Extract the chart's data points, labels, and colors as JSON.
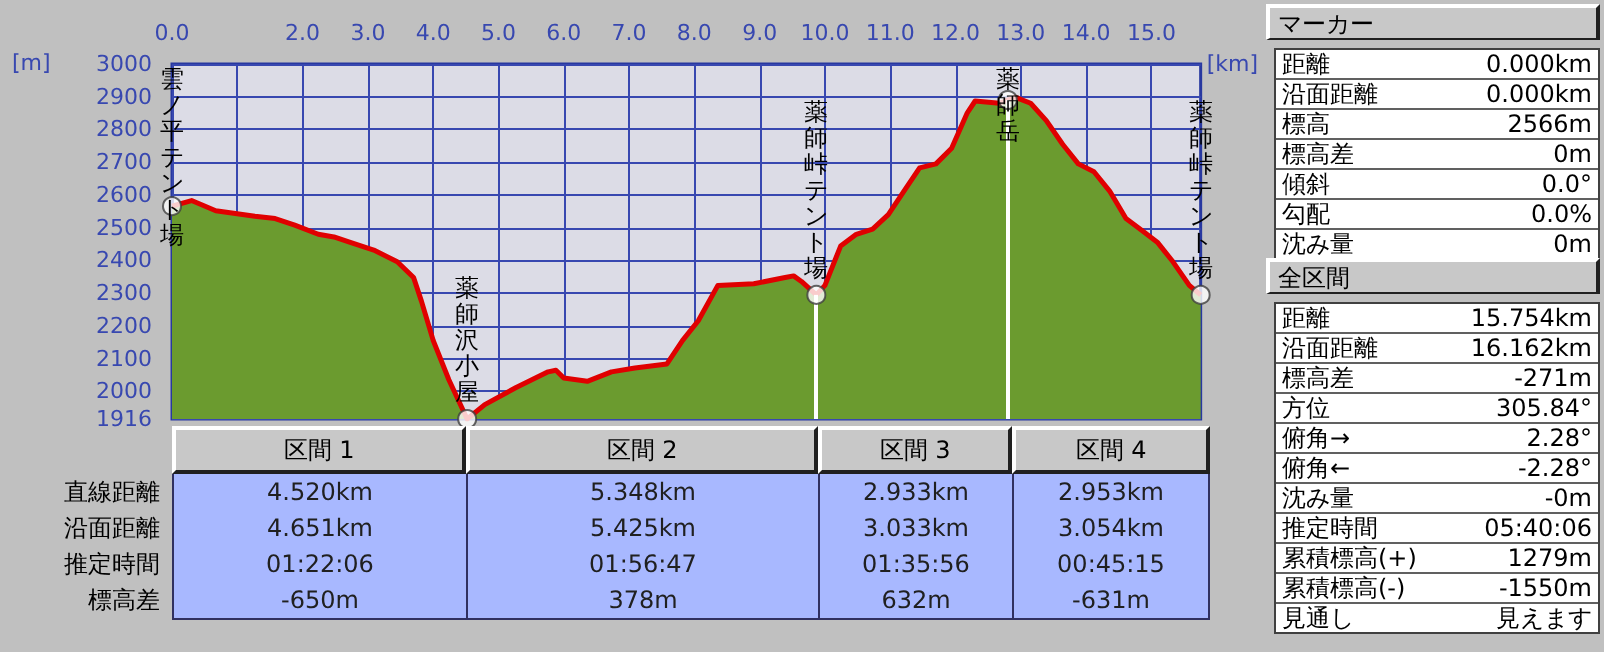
{
  "chart_data": [
    {
      "type": "area",
      "xlabel": "[km]",
      "ylabel": "[m]",
      "x": [
        0,
        0.3,
        0.67,
        1.27,
        1.58,
        1.88,
        2.24,
        2.48,
        2.73,
        3.09,
        3.45,
        3.7,
        3.82,
        4.0,
        4.24,
        4.52,
        4.79,
        5.27,
        5.76,
        5.88,
        6.0,
        6.36,
        6.73,
        7.09,
        7.58,
        7.82,
        8.06,
        8.36,
        8.91,
        9.39,
        9.52,
        9.64,
        9.868,
        10.0,
        10.24,
        10.48,
        10.73,
        10.97,
        11.21,
        11.45,
        11.7,
        11.94,
        12.18,
        12.3,
        12.67,
        12.91,
        13.15,
        13.39,
        13.64,
        13.88,
        14.12,
        14.36,
        14.61,
        14.85,
        15.09,
        15.33,
        15.58,
        15.754
      ],
      "series": [
        {
          "color": "#6b9b2f",
          "values": [
            2566,
            2583,
            2552,
            2535,
            2528,
            2508,
            2480,
            2472,
            2455,
            2432,
            2396,
            2348,
            2276,
            2156,
            2036,
            1916,
            1960,
            2012,
            2060,
            2065,
            2041,
            2031,
            2060,
            2072,
            2084,
            2156,
            2216,
            2324,
            2329,
            2348,
            2353,
            2336,
            2295,
            2324,
            2444,
            2480,
            2496,
            2540,
            2612,
            2683,
            2695,
            2743,
            2851,
            2887,
            2880,
            2899,
            2880,
            2827,
            2755,
            2695,
            2671,
            2612,
            2528,
            2492,
            2456,
            2396,
            2324,
            2295
          ]
        }
      ],
      "xlim": [
        0,
        15.754
      ],
      "xticks": [
        {
          "value": 0,
          "label": "0.0"
        },
        {
          "value": 1,
          "label": null
        },
        {
          "value": 2,
          "label": "2.0"
        },
        {
          "value": 3,
          "label": "3.0"
        },
        {
          "value": 4,
          "label": "4.0"
        },
        {
          "value": 5,
          "label": "5.0"
        },
        {
          "value": 6,
          "label": "6.0"
        },
        {
          "value": 7,
          "label": "7.0"
        },
        {
          "value": 8,
          "label": "8.0"
        },
        {
          "value": 9,
          "label": "9.0"
        },
        {
          "value": 10,
          "label": "10.0"
        },
        {
          "value": 11,
          "label": "11.0"
        },
        {
          "value": 12,
          "label": "12.0"
        },
        {
          "value": 13,
          "label": "13.0"
        },
        {
          "value": 14,
          "label": "14.0"
        },
        {
          "value": 15,
          "label": "15.0"
        }
      ],
      "ylim": [
        1916,
        3000
      ],
      "yticks": [
        1916,
        2000,
        2100,
        2200,
        2300,
        2400,
        2500,
        2600,
        2700,
        2800,
        2900,
        3000
      ],
      "grid": true,
      "ref_lines": [
        {
          "axis": "x",
          "value": 9.868,
          "color": "#ffffff"
        },
        {
          "axis": "x",
          "value": 12.801,
          "color": "#ffffff"
        }
      ],
      "annotations": [
        {
          "text": "雲ノ平テント場",
          "x": 0,
          "y": 2566
        },
        {
          "text": "薬師沢小屋",
          "x": 4.52,
          "y": 1916
        },
        {
          "text": "薬師峠テント場",
          "x": 9.868,
          "y": 2295
        },
        {
          "text": "薬師岳",
          "x": 12.801,
          "y": 2890
        },
        {
          "text": "薬師峠テント場",
          "x": 15.754,
          "y": 2295
        }
      ]
    },
    {
      "type": "other",
      "categories": [
        "区間 1",
        "区間 2",
        "区間 3",
        "区間 4"
      ],
      "y_categories": [
        "直線距離",
        "沿面距離",
        "推定時間",
        "標高差"
      ],
      "cell_labels": [
        [
          "4.520km",
          "5.348km",
          "2.933km",
          "2.953km"
        ],
        [
          "4.651km",
          "5.425km",
          "3.033km",
          "3.054km"
        ],
        [
          "01:22:06",
          "01:56:47",
          "01:35:56",
          "00:45:15"
        ],
        [
          "-650m",
          "378m",
          "632m",
          "-631m"
        ]
      ]
    },
    {
      "type": "other",
      "title": "マーカー",
      "y_categories": [
        "距離",
        "沿面距離",
        "標高",
        "標高差",
        "傾斜",
        "勾配",
        "沈み量"
      ],
      "cell_labels": [
        [
          "0.000km"
        ],
        [
          "0.000km"
        ],
        [
          "2566m"
        ],
        [
          "0m"
        ],
        [
          "0.0°"
        ],
        [
          "0.0%"
        ],
        [
          "0m"
        ]
      ]
    },
    {
      "type": "other",
      "title": "全区間",
      "y_categories": [
        "距離",
        "沿面距離",
        "標高差",
        "方位",
        "俯角→",
        "俯角←",
        "沈み量",
        "推定時間",
        "累積標高(+)",
        "累積標高(-)",
        "見通し"
      ],
      "cell_labels": [
        [
          "15.754km"
        ],
        [
          "16.162km"
        ],
        [
          "-271m"
        ],
        [
          "305.84°"
        ],
        [
          "2.28°"
        ],
        [
          "-2.28°"
        ],
        [
          "-0m"
        ],
        [
          "05:40:06"
        ],
        [
          "1279m"
        ],
        [
          "-1550m"
        ],
        [
          "見えます"
        ]
      ]
    }
  ]
}
